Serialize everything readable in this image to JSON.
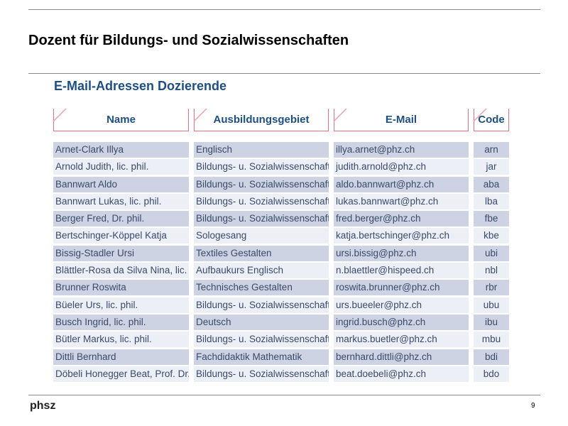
{
  "slide": {
    "title": "Dozent für Bildungs- und Sozialwissenschaften",
    "subtitle": "E-Mail-Adressen Dozierende",
    "logo": "phsz",
    "page_number": "9"
  },
  "table": {
    "headers": [
      "Name",
      "Ausbildungsgebiet",
      "E-Mail",
      "Code"
    ],
    "rows": [
      [
        "Arnet-Clark Illya",
        "Englisch",
        "illya.arnet@phz.ch",
        "arn"
      ],
      [
        "Arnold Judith, lic. phil.",
        "Bildungs- u. Sozialwissenschaften",
        "judith.arnold@phz.ch",
        "jar"
      ],
      [
        "Bannwart Aldo",
        "Bildungs- u. Sozialwissenschaften",
        "aldo.bannwart@phz.ch",
        "aba"
      ],
      [
        "Bannwart Lukas, lic. phil.",
        "Bildungs- u. Sozialwissenschaften",
        "lukas.bannwart@phz.ch",
        "lba"
      ],
      [
        "Berger Fred, Dr. phil.",
        "Bildungs- u. Sozialwissenschaften",
        "fred.berger@phz.ch",
        "fbe"
      ],
      [
        "Bertschinger-Köppel Katja",
        "Sologesang",
        "katja.bertschinger@phz.ch",
        "kbe"
      ],
      [
        "Bissig-Stadler Ursi",
        "Textiles Gestalten",
        "ursi.bissig@phz.ch",
        "ubi"
      ],
      [
        "Blättler-Rosa da Silva Nina, lic. phil.",
        "Aufbaukurs Englisch",
        "n.blaettler@hispeed.ch",
        "nbl"
      ],
      [
        "Brunner Roswita",
        "Technisches Gestalten",
        "roswita.brunner@phz.ch",
        "rbr"
      ],
      [
        "Büeler Urs, lic. phil.",
        "Bildungs- u. Sozialwissenschaften",
        "urs.bueeler@phz.ch",
        "ubu"
      ],
      [
        "Busch Ingrid, lic. phil.",
        "Deutsch",
        "ingrid.busch@phz.ch",
        "ibu"
      ],
      [
        "Bütler Markus, lic. phil.",
        "Bildungs- u. Sozialwissenschaften",
        "markus.buetler@phz.ch",
        "mbu"
      ],
      [
        "Dittli Bernhard",
        "Fachdidaktik Mathematik",
        "bernhard.dittli@phz.ch",
        "bdi"
      ],
      [
        "Döbeli Honegger Beat, Prof. Dr.",
        "Bildungs- u. Sozialwissenschaften",
        "beat.doebeli@phz.ch",
        "bdo"
      ]
    ]
  },
  "colors": {
    "header_text": "#1d4f86",
    "header_border": "#e8707e",
    "row_dark": "#cdd3e2",
    "row_light": "#eceff6"
  }
}
